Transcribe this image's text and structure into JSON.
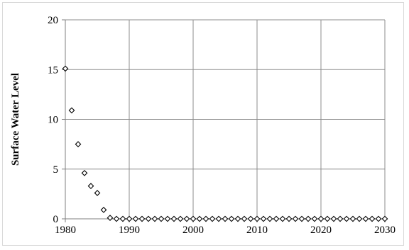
{
  "chart_data": {
    "type": "scatter",
    "title": "",
    "xlabel": "",
    "ylabel": "Surface Water Level",
    "xlim": [
      1980,
      2030
    ],
    "ylim": [
      0,
      20
    ],
    "x_ticks": [
      1980,
      1990,
      2000,
      2010,
      2020,
      2030
    ],
    "y_ticks": [
      0,
      5,
      10,
      15,
      20
    ],
    "grid": true,
    "legend": "none",
    "marker": "hollow-diamond",
    "colors": {
      "marker": "#000000",
      "grid": "#8c8c8c",
      "axis": "#7f7f7f"
    },
    "series": [
      {
        "x": [
          1980,
          1981,
          1982,
          1983,
          1984,
          1985,
          1986,
          1987,
          1988,
          1989,
          1990,
          1991,
          1992,
          1993,
          1994,
          1995,
          1996,
          1997,
          1998,
          1999,
          2000,
          2001,
          2002,
          2003,
          2004,
          2005,
          2006,
          2007,
          2008,
          2009,
          2010,
          2011,
          2012,
          2013,
          2014,
          2015,
          2016,
          2017,
          2018,
          2019,
          2020,
          2021,
          2022,
          2023,
          2024,
          2025,
          2026,
          2027,
          2028,
          2029,
          2030
        ],
        "values": [
          15.1,
          10.9,
          7.5,
          4.6,
          3.3,
          2.6,
          0.9,
          0.1,
          0,
          0,
          0,
          0,
          0,
          0,
          0,
          0,
          0,
          0,
          0,
          0,
          0,
          0,
          0,
          0,
          0,
          0,
          0,
          0,
          0,
          0,
          0,
          0,
          0,
          0,
          0,
          0,
          0,
          0,
          0,
          0,
          0,
          0,
          0,
          0,
          0,
          0,
          0,
          0,
          0,
          0,
          0
        ]
      }
    ]
  }
}
